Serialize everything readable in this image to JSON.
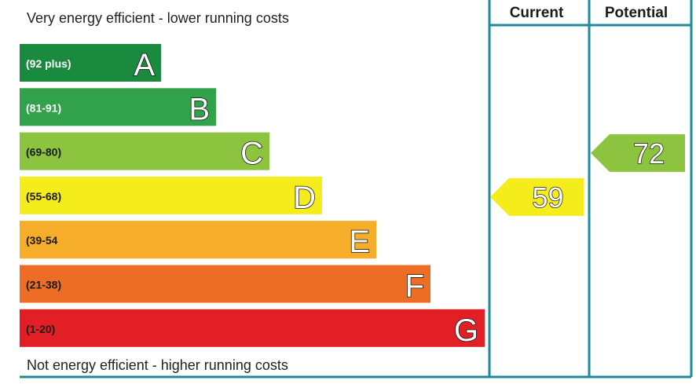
{
  "chart_data": {
    "type": "bar",
    "top_note": "Very energy efficient - lower running costs",
    "bottom_note": "Not energy efficient - higher running costs",
    "columns": {
      "current": "Current",
      "potential": "Potential"
    },
    "bands": [
      {
        "letter": "A",
        "range": "(92 plus)",
        "min": 92,
        "max": 100,
        "color": "#1a8a3f",
        "range_color": "#ffffff"
      },
      {
        "letter": "B",
        "range": "(81-91)",
        "min": 81,
        "max": 91,
        "color": "#31a14b",
        "range_color": "#ffffff"
      },
      {
        "letter": "C",
        "range": "(69-80)",
        "min": 69,
        "max": 80,
        "color": "#8cc43f",
        "range_color": "#1a1a1a"
      },
      {
        "letter": "D",
        "range": "(55-68)",
        "min": 55,
        "max": 68,
        "color": "#f4ec1b",
        "range_color": "#1a1a1a"
      },
      {
        "letter": "E",
        "range": "(39-54",
        "min": 39,
        "max": 54,
        "color": "#f6ad2a",
        "range_color": "#1a1a1a"
      },
      {
        "letter": "F",
        "range": "(21-38)",
        "min": 21,
        "max": 38,
        "color": "#ee6d25",
        "range_color": "#1a1a1a"
      },
      {
        "letter": "G",
        "range": "(1-20)",
        "min": 1,
        "max": 20,
        "color": "#e31f26",
        "range_color": "#1a1a1a"
      }
    ],
    "current": {
      "value": 59,
      "label": "59",
      "band": "D",
      "color": "#f4ec1b"
    },
    "potential": {
      "value": 72,
      "label": "72",
      "band": "C",
      "color": "#8cc43f"
    },
    "frame_color": "#1f8a9a"
  }
}
